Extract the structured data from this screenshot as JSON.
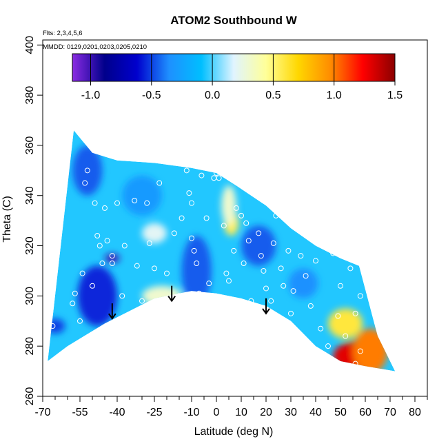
{
  "chart_data": {
    "type": "heatmap",
    "title": "ATOM2 Southbound W",
    "annotations": {
      "flights": "Flts: 2,3,4,5,6",
      "dates": "MMDD: 0129,0201,0203,0205,0210"
    },
    "xlabel": "Latitude (deg N)",
    "ylabel": "Theta (C)",
    "xlim": [
      -70,
      85
    ],
    "ylim": [
      260,
      402
    ],
    "x_ticks": [
      -70,
      -55,
      -40,
      -25,
      -10,
      0,
      10,
      20,
      30,
      40,
      50,
      60,
      70,
      80
    ],
    "x_minor_ticks": [
      -65,
      -60,
      -50,
      -45,
      -35,
      -30,
      -20,
      -15,
      -5,
      5,
      15,
      25,
      35,
      45,
      55,
      65,
      75,
      85
    ],
    "y_ticks": [
      260,
      280,
      300,
      320,
      340,
      360,
      380,
      400
    ],
    "x_tick_labels": [
      "-70",
      "-55",
      "-40",
      "-25",
      "-10",
      "0",
      "10",
      "20",
      "30",
      "40",
      "50",
      "60",
      "70",
      "80"
    ],
    "y_tick_labels": [
      "260",
      "280",
      "300",
      "320",
      "340",
      "360",
      "380",
      "400"
    ],
    "colorbar": {
      "range": [
        -1.15,
        1.5
      ],
      "ticks": [
        -1.0,
        -0.5,
        0.0,
        0.5,
        1.0,
        1.5
      ],
      "tick_labels": [
        "-1.0",
        "-0.5",
        "0.0",
        "0.5",
        "1.0",
        "1.5"
      ],
      "colors": [
        "#8a2be2",
        "#00008b",
        "#0000cd",
        "#1e90ff",
        "#00bfff",
        "#e0f4ff",
        "#ffff99",
        "#ffd700",
        "#ff8c00",
        "#ff0000",
        "#8b0000"
      ]
    },
    "domain_top": [
      [
        -57.5,
        366
      ],
      [
        -50,
        357
      ],
      [
        -40,
        354
      ],
      [
        -25,
        353
      ],
      [
        -10,
        351
      ],
      [
        0,
        349
      ],
      [
        8,
        344
      ],
      [
        20,
        336
      ],
      [
        30,
        327
      ],
      [
        40,
        320
      ],
      [
        50,
        315
      ],
      [
        57.5,
        312
      ]
    ],
    "domain_bottom": [
      [
        -68,
        274
      ],
      [
        -60,
        280
      ],
      [
        -45,
        289
      ],
      [
        -35,
        294
      ],
      [
        -25,
        299
      ],
      [
        -10,
        302
      ],
      [
        0,
        301
      ],
      [
        10,
        299
      ],
      [
        20,
        296
      ],
      [
        30,
        290
      ],
      [
        40,
        280
      ],
      [
        50,
        274
      ],
      [
        60,
        272
      ],
      [
        72,
        270
      ]
    ],
    "domain_right_edge": [
      [
        57.5,
        312
      ],
      [
        65,
        284
      ],
      [
        72,
        270
      ]
    ],
    "features": [
      {
        "lat": 57,
        "theta": 276,
        "value": 1.3,
        "rx": 10,
        "ry": 6
      },
      {
        "lat": 62,
        "theta": 278,
        "value": 1.0,
        "rx": 7,
        "ry": 9
      },
      {
        "lat": 52,
        "theta": 289,
        "value": 0.6,
        "rx": 7,
        "ry": 6
      },
      {
        "lat": 6,
        "theta": 329,
        "value": 0.55,
        "rx": 3,
        "ry": 5
      },
      {
        "lat": 5,
        "theta": 336,
        "value": 0.3,
        "rx": 3,
        "ry": 8
      },
      {
        "lat": -22,
        "theta": 300,
        "value": 0.3,
        "rx": 8,
        "ry": 4
      },
      {
        "lat": -42,
        "theta": 315,
        "value": -1.0,
        "rx": 3,
        "ry": 1.8
      },
      {
        "lat": -48,
        "theta": 300,
        "value": -0.55,
        "rx": 8,
        "ry": 12
      },
      {
        "lat": -25,
        "theta": 325,
        "value": 0.2,
        "rx": 5,
        "ry": 4
      },
      {
        "lat": -8,
        "theta": 310,
        "value": -0.45,
        "rx": 6,
        "ry": 14
      },
      {
        "lat": 17,
        "theta": 320,
        "value": -0.45,
        "rx": 7,
        "ry": 8
      },
      {
        "lat": 35,
        "theta": 305,
        "value": -0.35,
        "rx": 6,
        "ry": 6
      },
      {
        "lat": -52,
        "theta": 350,
        "value": -0.45,
        "rx": 6,
        "ry": 10
      },
      {
        "lat": -65,
        "theta": 288,
        "value": -0.5,
        "rx": 4,
        "ry": 3
      },
      {
        "lat": -30,
        "theta": 340,
        "value": -0.3,
        "rx": 8,
        "ry": 8
      }
    ],
    "observations": [
      [
        -68,
        289
      ],
      [
        -66,
        288
      ],
      [
        -58,
        297
      ],
      [
        -57,
        301
      ],
      [
        -55,
        290
      ],
      [
        -54,
        309
      ],
      [
        -53,
        345
      ],
      [
        -52,
        350
      ],
      [
        -50,
        304
      ],
      [
        -49,
        337
      ],
      [
        -48,
        324
      ],
      [
        -47,
        320
      ],
      [
        -46,
        313
      ],
      [
        -45,
        335
      ],
      [
        -44,
        322
      ],
      [
        -42,
        316
      ],
      [
        -42,
        313
      ],
      [
        -40,
        337
      ],
      [
        -38,
        300
      ],
      [
        -37,
        320
      ],
      [
        -35,
        292
      ],
      [
        -33,
        338
      ],
      [
        -32,
        312
      ],
      [
        -30,
        298
      ],
      [
        -28,
        337
      ],
      [
        -27,
        321
      ],
      [
        -25,
        311
      ],
      [
        -23,
        345
      ],
      [
        -20,
        309
      ],
      [
        -19,
        296
      ],
      [
        -17,
        325
      ],
      [
        -15,
        300
      ],
      [
        -14,
        331
      ],
      [
        -12,
        350
      ],
      [
        -11,
        341
      ],
      [
        -10,
        337
      ],
      [
        -10,
        323
      ],
      [
        -9,
        318
      ],
      [
        -8,
        313
      ],
      [
        -7,
        301
      ],
      [
        -6,
        348
      ],
      [
        -4,
        331
      ],
      [
        -3,
        305
      ],
      [
        -2,
        298
      ],
      [
        -1,
        347
      ],
      [
        0,
        349
      ],
      [
        1,
        347
      ],
      [
        3,
        328
      ],
      [
        4,
        309
      ],
      [
        5,
        306
      ],
      [
        7,
        318
      ],
      [
        8,
        335
      ],
      [
        10,
        332
      ],
      [
        11,
        313
      ],
      [
        12,
        329
      ],
      [
        13,
        322
      ],
      [
        14,
        298
      ],
      [
        16,
        348
      ],
      [
        17,
        325
      ],
      [
        18,
        316
      ],
      [
        19,
        310
      ],
      [
        20,
        303
      ],
      [
        22,
        298
      ],
      [
        23,
        321
      ],
      [
        24,
        332
      ],
      [
        26,
        311
      ],
      [
        27,
        304
      ],
      [
        29,
        318
      ],
      [
        30,
        293
      ],
      [
        31,
        302
      ],
      [
        33,
        327
      ],
      [
        34,
        316
      ],
      [
        36,
        308
      ],
      [
        38,
        296
      ],
      [
        40,
        314
      ],
      [
        42,
        287
      ],
      [
        45,
        280
      ],
      [
        47,
        317
      ],
      [
        49,
        292
      ],
      [
        50,
        304
      ],
      [
        52,
        284
      ],
      [
        54,
        311
      ],
      [
        56,
        293
      ],
      [
        58,
        300
      ],
      [
        58,
        278
      ],
      [
        56,
        273
      ]
    ],
    "arrows": [
      [
        -42,
        291
      ],
      [
        -18,
        298
      ],
      [
        20,
        293
      ]
    ]
  }
}
